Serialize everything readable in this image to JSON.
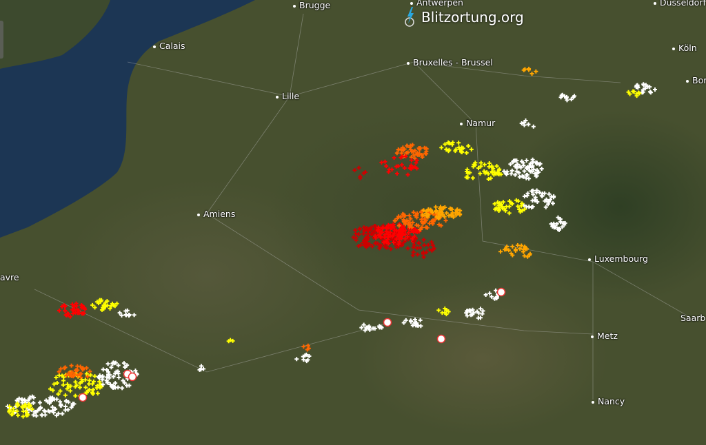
{
  "app": {
    "title": "Blitzortung.org"
  },
  "map": {
    "cities": [
      "Brugge",
      "Antwerpen",
      "Düsseldorf",
      "Calais",
      "Bruxelles - Brussel",
      "Köln",
      "Bor",
      "Lille",
      "Namur",
      "Amiens",
      "avre",
      "Luxembourg",
      "Metz",
      "Saarb",
      "Nancy"
    ],
    "strike_age_colors": [
      "#ffffff",
      "#ffff00",
      "#ffa500",
      "#ff6600",
      "#ff0000",
      "#cc0000"
    ],
    "sea_color": "#1e3a5f",
    "logo_icon": "lightning-bolt-icon"
  }
}
